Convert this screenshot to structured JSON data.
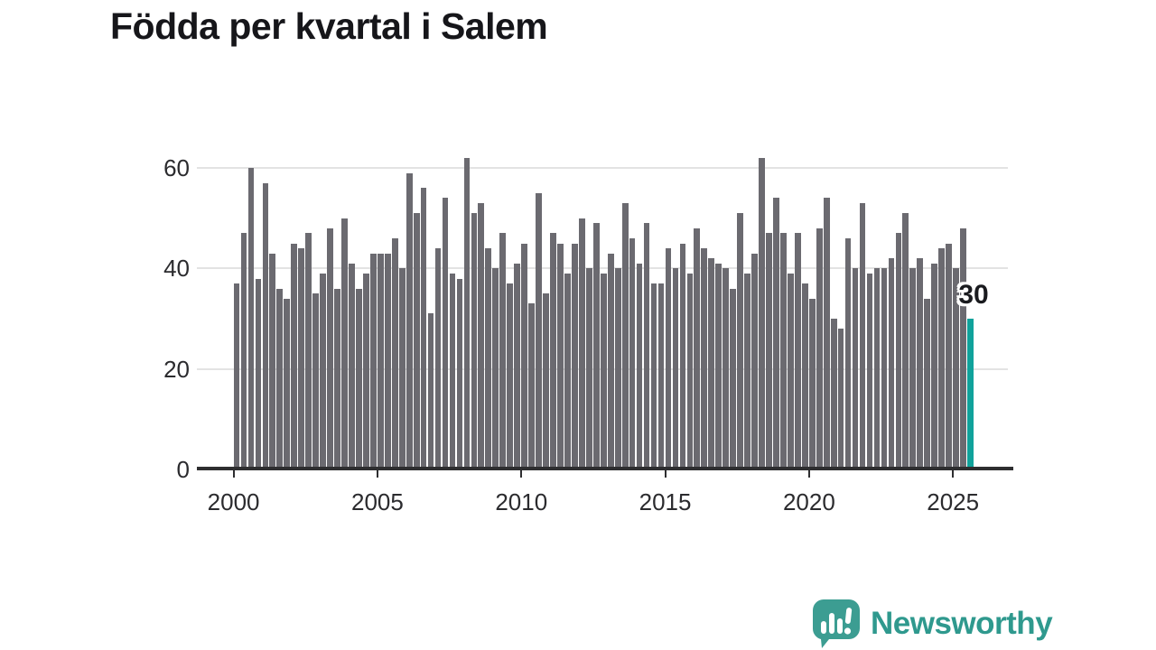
{
  "chart_data": {
    "type": "bar",
    "title": "Födda per kvartal i Salem",
    "frequency": "quarterly",
    "period_start": "2000 Q1",
    "period_end": "2025 Q3",
    "values": [
      37,
      47,
      60,
      38,
      57,
      43,
      36,
      34,
      45,
      44,
      47,
      35,
      39,
      48,
      36,
      50,
      41,
      36,
      39,
      43,
      43,
      43,
      46,
      40,
      59,
      51,
      56,
      31,
      44,
      54,
      39,
      38,
      62,
      51,
      53,
      44,
      40,
      47,
      37,
      41,
      45,
      33,
      55,
      35,
      47,
      45,
      39,
      45,
      50,
      40,
      49,
      39,
      43,
      40,
      53,
      46,
      41,
      49,
      37,
      37,
      44,
      40,
      45,
      39,
      48,
      44,
      42,
      41,
      40,
      36,
      51,
      39,
      43,
      62,
      47,
      54,
      47,
      39,
      47,
      37,
      34,
      48,
      54,
      30,
      28,
      46,
      40,
      53,
      39,
      40,
      40,
      42,
      47,
      51,
      40,
      42,
      34,
      41,
      44,
      45,
      40,
      48,
      30
    ],
    "x_tick_labels": [
      "2000",
      "2005",
      "2010",
      "2015",
      "2020",
      "2025"
    ],
    "y_tick_labels": [
      "0",
      "20",
      "40",
      "60"
    ],
    "y_ticks": [
      0,
      20,
      40,
      60
    ],
    "ylim": [
      0,
      62
    ],
    "grid": "horizontal",
    "legend": "none",
    "highlight": {
      "index": 102,
      "label": "30",
      "period": "2025 Q3",
      "value": 30
    },
    "colors": {
      "bar": "#6b6a70",
      "highlight": "#10a29b",
      "gridline": "#e3e3e3",
      "axis": "#2e2e30",
      "text": "#2b2b2e",
      "title": "#16161a"
    }
  },
  "branding": {
    "logo_text": "Newsworthy",
    "logo_text_color": "#2f998e",
    "logo_icon_color": "#3c9d92",
    "logo_icon": "speech-bubble-with-bar-chart-and-exclamation"
  }
}
